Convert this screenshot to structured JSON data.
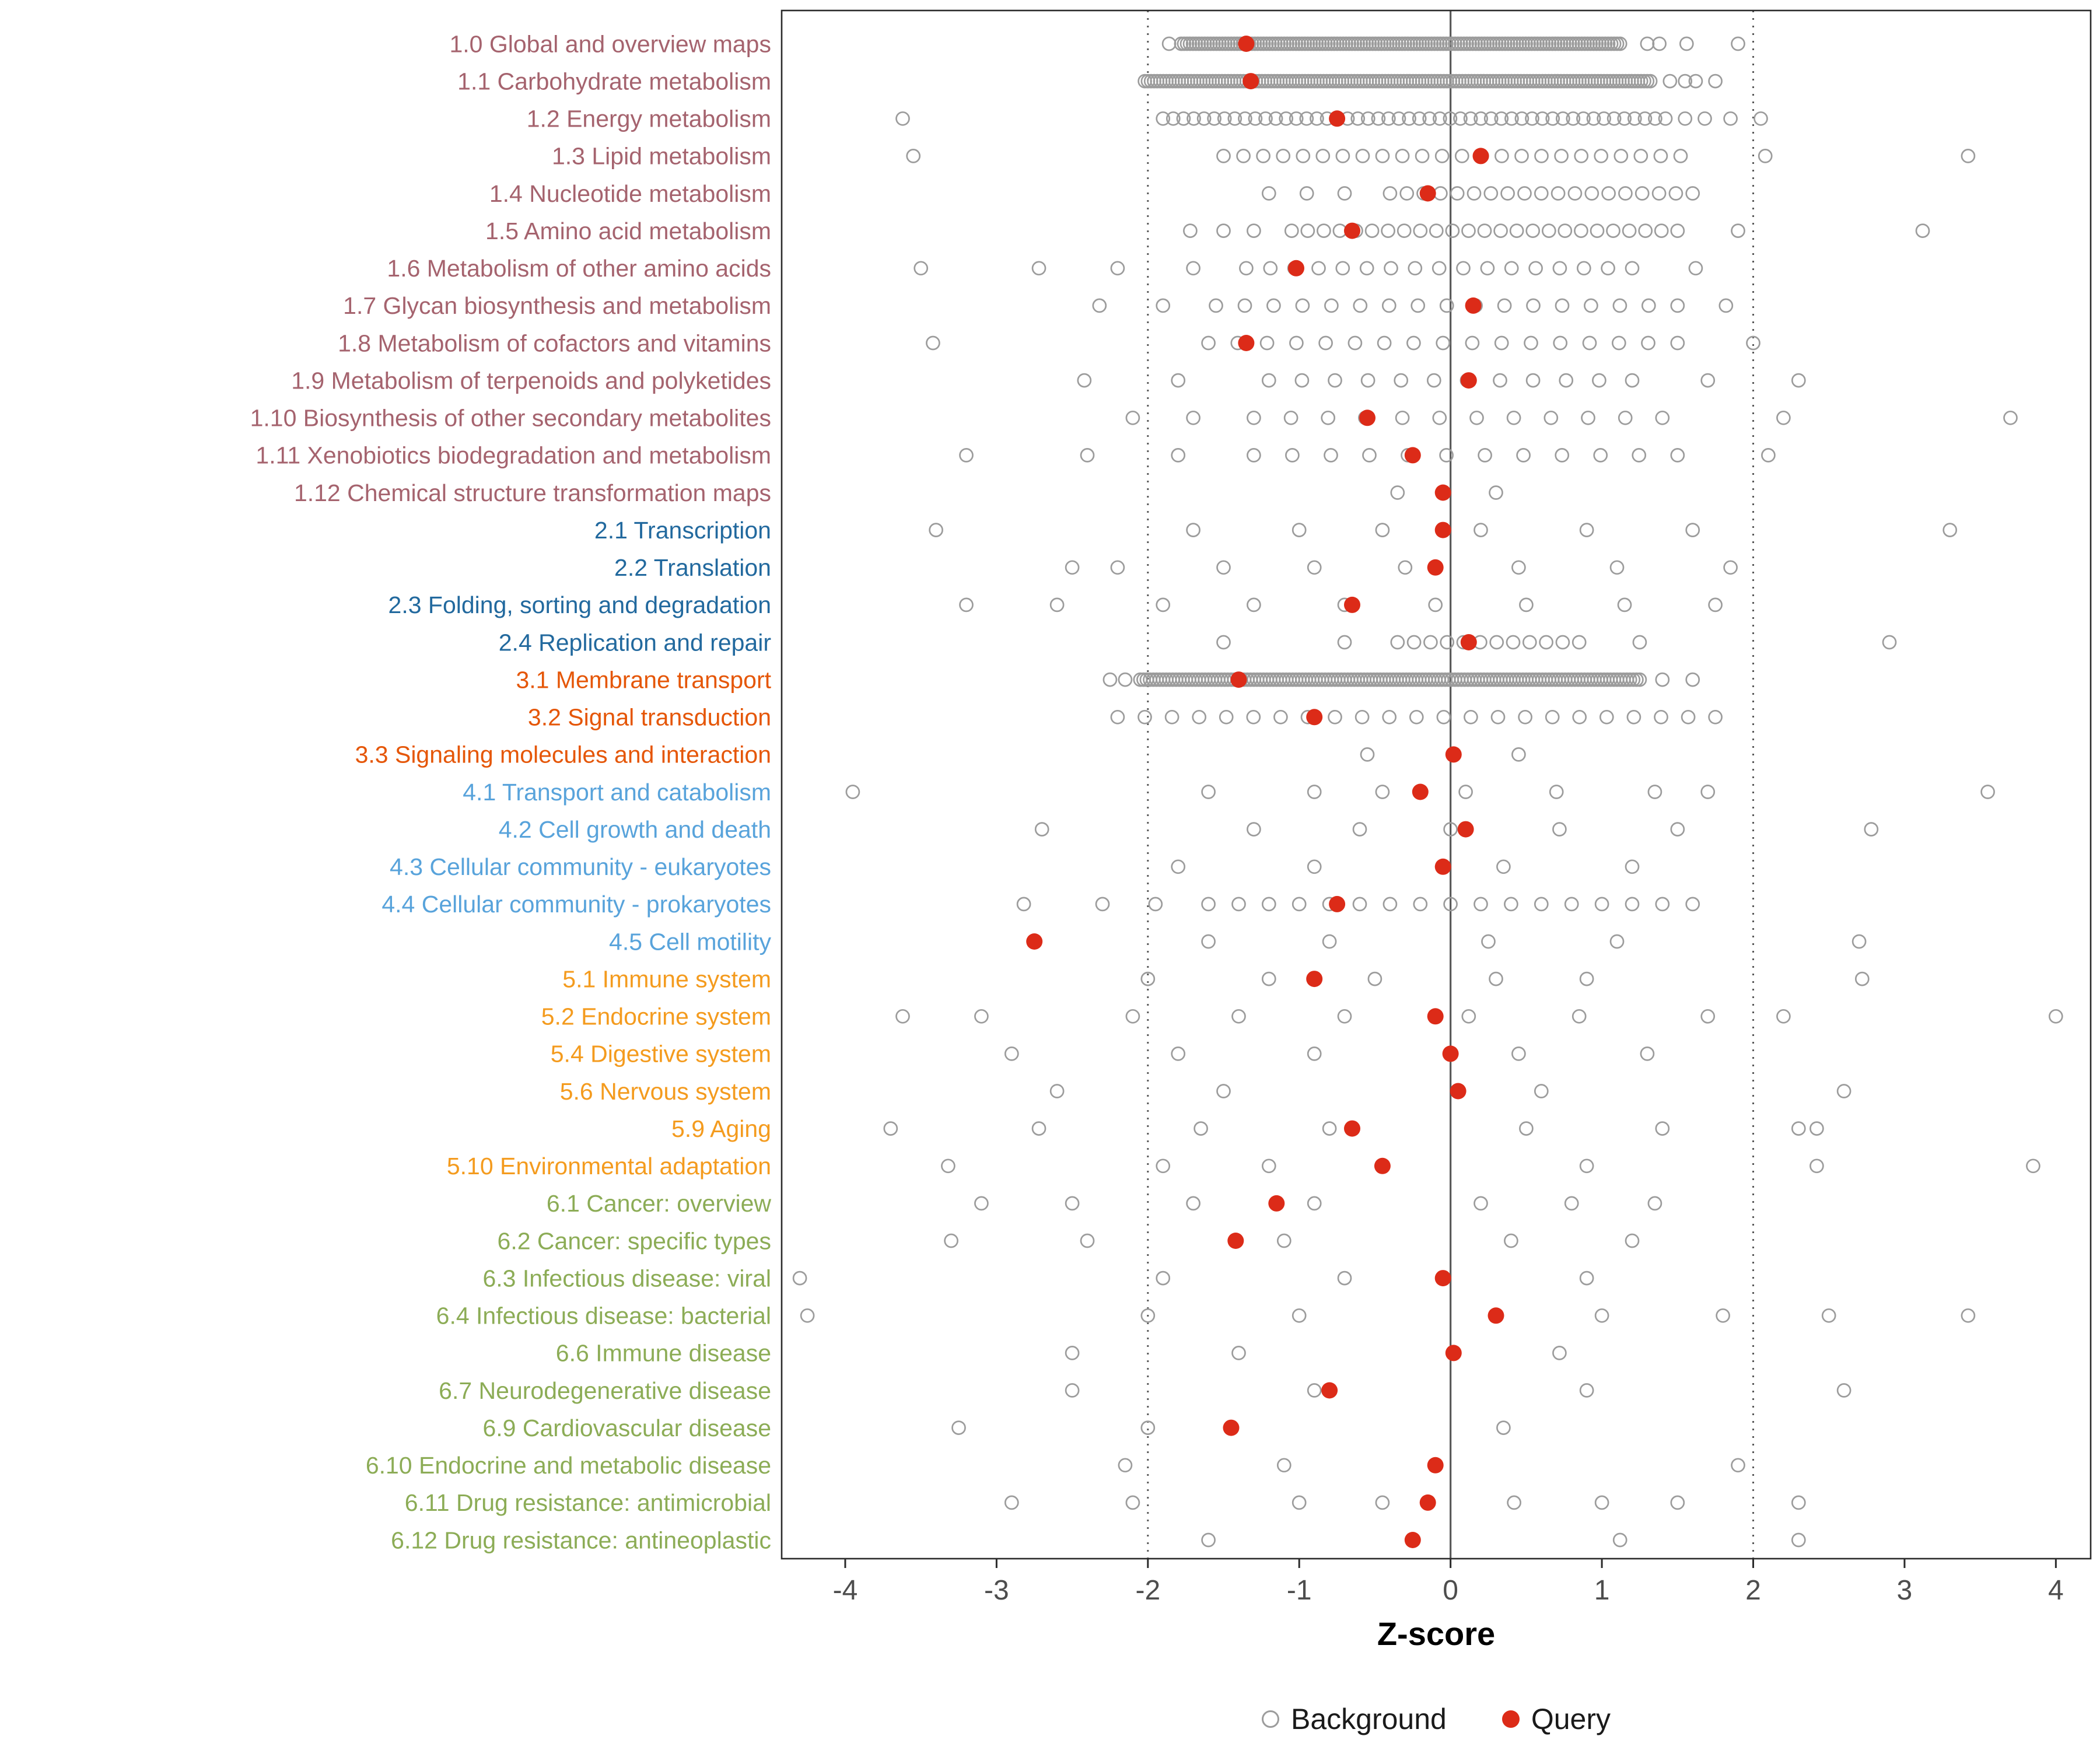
{
  "chart_data": {
    "type": "scatter",
    "title": "",
    "xlabel": "Z-score",
    "ylabel": "",
    "xlim": [
      -4.42,
      4.23
    ],
    "x_ticks": [
      -4,
      -3,
      -2,
      -1,
      0,
      1,
      2,
      3,
      4
    ],
    "reference_lines": {
      "solid": [
        0
      ],
      "dotted": [
        -2,
        2
      ]
    },
    "legend": [
      {
        "label": "Background",
        "marker": "open-circle",
        "color": "#9C9C9C"
      },
      {
        "label": "Query",
        "marker": "filled-circle",
        "color": "#DC2B18"
      }
    ],
    "point_colors": {
      "background": "#9C9C9C",
      "query": "#DC2B18"
    },
    "group_colors": {
      "1": "#A5636E",
      "2": "#22699E",
      "3": "#E55607",
      "4": "#58A3DB",
      "5": "#F49B1E",
      "6": "#8CAC56"
    },
    "categories": [
      {
        "label": "1.0 Global and overview maps",
        "group": "1",
        "query": -1.35,
        "band": [
          -1.78,
          1.12,
          150
        ],
        "background": [
          -1.86,
          1.3,
          1.38,
          1.56,
          1.9
        ]
      },
      {
        "label": "1.1 Carbohydrate metabolism",
        "group": "1",
        "query": -1.32,
        "band": [
          -2.02,
          1.32,
          165
        ],
        "background": [
          1.45,
          1.55,
          1.62,
          1.75
        ]
      },
      {
        "label": "1.2 Energy metabolism",
        "group": "1",
        "query": -0.75,
        "band": [
          -1.9,
          1.42,
          50
        ],
        "background": [
          -3.62,
          1.55,
          1.68,
          1.85,
          2.05
        ]
      },
      {
        "label": "1.3 Lipid metabolism",
        "group": "1",
        "query": 0.2,
        "band": [
          -1.5,
          1.52,
          24
        ],
        "background": [
          -3.55,
          2.08,
          3.42
        ]
      },
      {
        "label": "1.4 Nucleotide metabolism",
        "group": "1",
        "query": -0.15,
        "band": [
          -0.4,
          1.6,
          19
        ],
        "background": [
          -1.2,
          -0.95,
          -0.7
        ]
      },
      {
        "label": "1.5 Amino acid metabolism",
        "group": "1",
        "query": -0.65,
        "band": [
          -1.05,
          1.5,
          25
        ],
        "background": [
          -1.72,
          -1.5,
          -1.3,
          1.9,
          3.12
        ]
      },
      {
        "label": "1.6 Metabolism of other amino acids",
        "group": "1",
        "query": -1.02,
        "band": [
          -1.35,
          1.2,
          17
        ],
        "background": [
          -3.5,
          -2.72,
          -2.2,
          -1.7,
          1.62
        ]
      },
      {
        "label": "1.7 Glycan biosynthesis and metabolism",
        "group": "1",
        "query": 0.15,
        "band": [
          -1.55,
          1.5,
          17
        ],
        "background": [
          -2.32,
          -1.9,
          1.82
        ]
      },
      {
        "label": "1.8 Metabolism of cofactors and vitamins",
        "group": "1",
        "query": -1.35,
        "band": [
          -1.6,
          1.5,
          17
        ],
        "background": [
          -3.42,
          2.0
        ]
      },
      {
        "label": "1.9 Metabolism of terpenoids and polyketides",
        "group": "1",
        "query": 0.12,
        "band": [
          -1.2,
          1.2,
          12
        ],
        "background": [
          -2.42,
          -1.8,
          1.7,
          2.3
        ]
      },
      {
        "label": "1.10 Biosynthesis of other secondary metabolites",
        "group": "1",
        "query": -0.55,
        "band": [
          -1.3,
          1.4,
          12
        ],
        "background": [
          -2.1,
          -1.7,
          2.2,
          3.7
        ]
      },
      {
        "label": "1.11 Xenobiotics biodegradation and metabolism",
        "group": "1",
        "query": -0.25,
        "band": [
          -1.3,
          1.5,
          12
        ],
        "background": [
          -3.2,
          -2.4,
          -1.8,
          2.1
        ]
      },
      {
        "label": "1.12 Chemical structure transformation maps",
        "group": "1",
        "query": -0.05,
        "background": [
          -0.35,
          0.3
        ]
      },
      {
        "label": "2.1 Transcription",
        "group": "2",
        "query": -0.05,
        "background": [
          -3.4,
          -1.7,
          -1.0,
          -0.45,
          0.2,
          0.9,
          1.6,
          3.3
        ]
      },
      {
        "label": "2.2 Translation",
        "group": "2",
        "query": -0.1,
        "background": [
          -2.5,
          -2.2,
          -1.5,
          -0.9,
          -0.3,
          0.45,
          1.1,
          1.85
        ]
      },
      {
        "label": "2.3 Folding, sorting and degradation",
        "group": "2",
        "query": -0.65,
        "background": [
          -3.2,
          -2.6,
          -1.9,
          -1.3,
          -0.7,
          -0.1,
          0.5,
          1.15,
          1.75
        ]
      },
      {
        "label": "2.4 Replication and repair",
        "group": "2",
        "query": 0.12,
        "band": [
          -0.35,
          0.85,
          12
        ],
        "background": [
          -1.5,
          -0.7,
          1.25,
          2.9
        ]
      },
      {
        "label": "3.1 Membrane transport",
        "group": "3",
        "query": -1.4,
        "band": [
          -2.05,
          1.25,
          155
        ],
        "background": [
          -2.25,
          -2.15,
          1.4,
          1.6
        ]
      },
      {
        "label": "3.2 Signal transduction",
        "group": "3",
        "query": -0.9,
        "band": [
          -2.2,
          1.75,
          23
        ],
        "background": []
      },
      {
        "label": "3.3 Signaling molecules and interaction",
        "group": "3",
        "query": 0.02,
        "background": [
          -0.55,
          0.45
        ]
      },
      {
        "label": "4.1 Transport and catabolism",
        "group": "4",
        "query": -0.2,
        "background": [
          -3.95,
          -1.6,
          -0.9,
          -0.45,
          0.1,
          0.7,
          1.35,
          1.7,
          3.55
        ]
      },
      {
        "label": "4.2 Cell growth and death",
        "group": "4",
        "query": 0.1,
        "background": [
          -2.7,
          -1.3,
          -0.6,
          0.0,
          0.72,
          1.5,
          2.78
        ]
      },
      {
        "label": "4.3 Cellular community - eukaryotes",
        "group": "4",
        "query": -0.05,
        "background": [
          -1.8,
          -0.9,
          0.35,
          1.2
        ]
      },
      {
        "label": "4.4 Cellular community - prokaryotes",
        "group": "4",
        "query": -0.75,
        "band": [
          -1.6,
          1.6,
          17
        ],
        "background": [
          -2.82,
          -2.3,
          -1.95
        ]
      },
      {
        "label": "4.5 Cell motility",
        "group": "4",
        "query": -2.75,
        "background": [
          -1.6,
          -0.8,
          0.25,
          1.1,
          2.7
        ]
      },
      {
        "label": "5.1 Immune system",
        "group": "5",
        "query": -0.9,
        "background": [
          -2.0,
          -1.2,
          -0.5,
          0.3,
          0.9,
          2.72
        ]
      },
      {
        "label": "5.2 Endocrine system",
        "group": "5",
        "query": -0.1,
        "background": [
          -3.62,
          -3.1,
          -2.1,
          -1.4,
          -0.7,
          0.12,
          0.85,
          1.7,
          2.2,
          4.0
        ]
      },
      {
        "label": "5.4 Digestive system",
        "group": "5",
        "query": 0.0,
        "background": [
          -2.9,
          -1.8,
          -0.9,
          0.45,
          1.3
        ]
      },
      {
        "label": "5.6 Nervous system",
        "group": "5",
        "query": 0.05,
        "background": [
          -2.6,
          -1.5,
          0.6,
          2.6
        ]
      },
      {
        "label": "5.9 Aging",
        "group": "5",
        "query": -0.65,
        "background": [
          -3.7,
          -2.72,
          -1.65,
          -0.8,
          0.5,
          1.4,
          2.3,
          2.42
        ]
      },
      {
        "label": "5.10 Environmental adaptation",
        "group": "5",
        "query": -0.45,
        "background": [
          -3.32,
          -1.9,
          -1.2,
          0.9,
          2.42,
          3.85
        ]
      },
      {
        "label": "6.1 Cancer: overview",
        "group": "6",
        "query": -1.15,
        "background": [
          -3.1,
          -2.5,
          -1.7,
          -0.9,
          0.2,
          0.8,
          1.35
        ]
      },
      {
        "label": "6.2 Cancer: specific types",
        "group": "6",
        "query": -1.42,
        "background": [
          -3.3,
          -2.4,
          -1.1,
          0.4,
          1.2
        ]
      },
      {
        "label": "6.3 Infectious disease: viral",
        "group": "6",
        "query": -0.05,
        "background": [
          -4.3,
          -1.9,
          -0.7,
          0.9
        ]
      },
      {
        "label": "6.4 Infectious disease: bacterial",
        "group": "6",
        "query": 0.3,
        "background": [
          -4.25,
          -2.0,
          -1.0,
          1.0,
          1.8,
          2.5,
          3.42
        ]
      },
      {
        "label": "6.6 Immune disease",
        "group": "6",
        "query": 0.02,
        "background": [
          -2.5,
          -1.4,
          0.72
        ]
      },
      {
        "label": "6.7 Neurodegenerative disease",
        "group": "6",
        "query": -0.8,
        "background": [
          -2.5,
          -0.9,
          0.9,
          2.6
        ]
      },
      {
        "label": "6.9 Cardiovascular disease",
        "group": "6",
        "query": -1.45,
        "background": [
          -3.25,
          -2.0,
          0.35
        ]
      },
      {
        "label": "6.10 Endocrine and metabolic disease",
        "group": "6",
        "query": -0.1,
        "background": [
          -2.15,
          -1.1,
          1.9
        ]
      },
      {
        "label": "6.11 Drug resistance: antimicrobial",
        "group": "6",
        "query": -0.15,
        "background": [
          -2.9,
          -2.1,
          -1.0,
          -0.45,
          0.42,
          1.0,
          1.5,
          2.3
        ]
      },
      {
        "label": "6.12 Drug resistance: antineoplastic",
        "group": "6",
        "query": -0.25,
        "background": [
          -1.6,
          1.12,
          2.3
        ]
      }
    ]
  }
}
